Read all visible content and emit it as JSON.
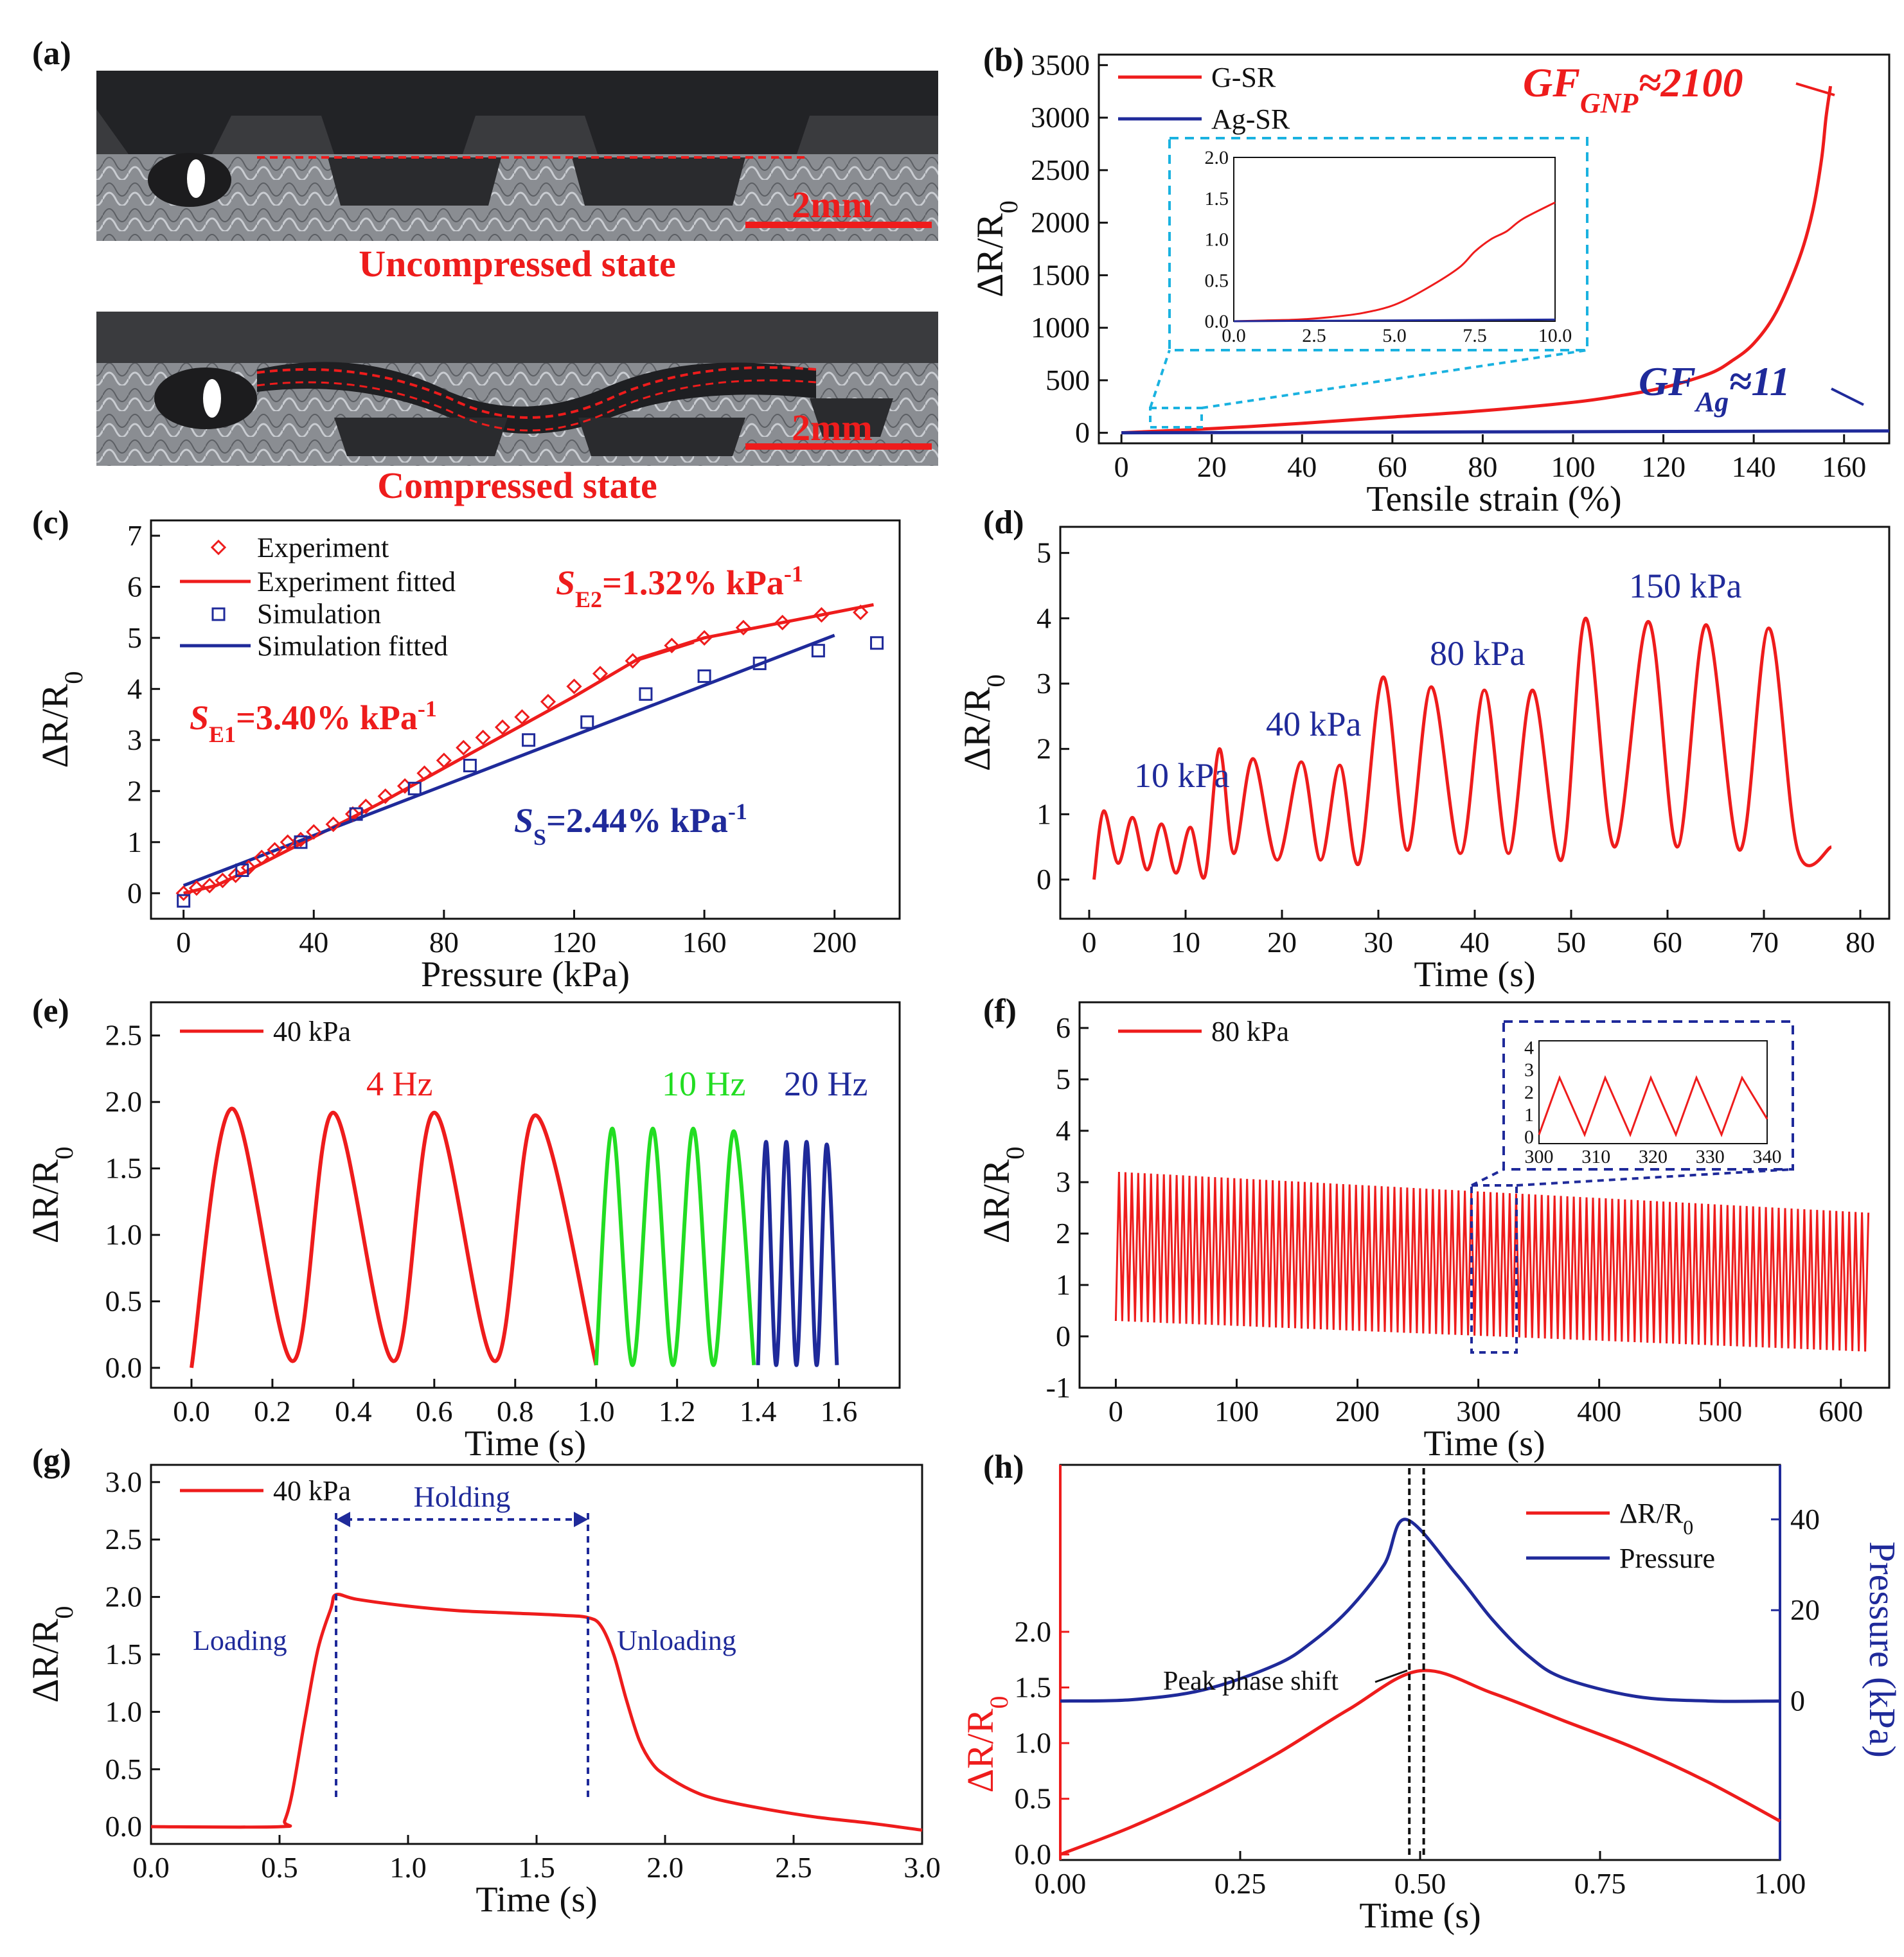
{
  "colors": {
    "red": "#ee1c1c",
    "blue": "#1f2a9a",
    "green": "#22dd22",
    "cyan": "#1ab2e0",
    "black": "#111111"
  },
  "panels": {
    "a": {
      "label": "(a)",
      "top_caption": "Uncompressed state",
      "bottom_caption": "Compressed state",
      "scale_top": "2mm",
      "scale_bottom": "2mm"
    },
    "b": {
      "label": "(b)"
    },
    "c": {
      "label": "(c)"
    },
    "d": {
      "label": "(d)"
    },
    "e": {
      "label": "(e)"
    },
    "f": {
      "label": "(f)"
    },
    "g": {
      "label": "(g)"
    },
    "h": {
      "label": "(h)"
    }
  },
  "chart_data": [
    {
      "panel": "b",
      "type": "line",
      "xlabel": "Tensile strain (%)",
      "ylabel": "ΔR/R0",
      "xlim": [
        -5,
        170
      ],
      "ylim": [
        -100,
        3600
      ],
      "xticks": [
        "0",
        "20",
        "40",
        "60",
        "80",
        "100",
        "120",
        "140",
        "160"
      ],
      "yticks": [
        "0",
        "500",
        "1000",
        "1500",
        "2000",
        "2500",
        "3000",
        "3500"
      ],
      "legend": [
        "G-SR",
        "Ag-SR"
      ],
      "legend_position": "top-left",
      "series": [
        {
          "name": "G-SR",
          "color": "#ee1c1c",
          "x": [
            0,
            20,
            40,
            60,
            80,
            100,
            110,
            120,
            130,
            135,
            140,
            145,
            150,
            153,
            155,
            156,
            157
          ],
          "y": [
            0,
            40,
            90,
            150,
            210,
            290,
            350,
            430,
            560,
            680,
            850,
            1150,
            1650,
            2100,
            2600,
            3000,
            3300
          ]
        },
        {
          "name": "Ag-SR",
          "color": "#1f2a9a",
          "x": [
            0,
            170
          ],
          "y": [
            0,
            18
          ]
        }
      ],
      "annotations": [
        "GF",
        "GNP",
        "≈2100",
        "GF",
        "Ag",
        "≈11"
      ],
      "inset": {
        "xlim": [
          0,
          10
        ],
        "ylim": [
          0,
          2.0
        ],
        "xticks": [
          "0.0",
          "2.5",
          "5.0",
          "7.5",
          "10.0"
        ],
        "yticks": [
          "0.0",
          "0.5",
          "1.0",
          "1.5",
          "2.0"
        ],
        "series": [
          {
            "name": "G-SR",
            "color": "#ee1c1c",
            "x": [
              0,
              1,
              2,
              3,
              4,
              5,
              6,
              7,
              7.5,
              8,
              8.5,
              9,
              10
            ],
            "y": [
              0,
              0.01,
              0.02,
              0.05,
              0.1,
              0.2,
              0.4,
              0.65,
              0.85,
              1.0,
              1.1,
              1.25,
              1.45
            ]
          },
          {
            "name": "Ag-SR",
            "color": "#1f2a9a",
            "x": [
              0,
              10
            ],
            "y": [
              0,
              0.02
            ]
          }
        ]
      }
    },
    {
      "panel": "c",
      "type": "scatter",
      "xlabel": "Pressure (kPa)",
      "ylabel": "ΔR/R0",
      "xlim": [
        -10,
        220
      ],
      "ylim": [
        -0.5,
        7.3
      ],
      "xticks": [
        "0",
        "40",
        "80",
        "120",
        "160",
        "200"
      ],
      "yticks": [
        "0",
        "1",
        "2",
        "3",
        "4",
        "5",
        "6",
        "7"
      ],
      "legend": [
        "Experiment",
        "Experiment fitted",
        "Simulation",
        "Simulation fitted"
      ],
      "legend_position": "top-left",
      "series": [
        {
          "name": "Experiment",
          "color": "#ee1c1c",
          "marker": "diamond",
          "x": [
            0,
            4,
            8,
            12,
            16,
            20,
            24,
            28,
            32,
            36,
            40,
            46,
            52,
            56,
            62,
            68,
            74,
            80,
            86,
            92,
            98,
            104,
            112,
            120,
            128,
            138,
            150,
            160,
            172,
            184,
            196,
            208
          ],
          "y": [
            0,
            0.1,
            0.15,
            0.25,
            0.35,
            0.5,
            0.7,
            0.85,
            1.0,
            1.05,
            1.2,
            1.35,
            1.55,
            1.7,
            1.9,
            2.1,
            2.35,
            2.6,
            2.85,
            3.05,
            3.25,
            3.45,
            3.75,
            4.05,
            4.3,
            4.55,
            4.85,
            5.0,
            5.2,
            5.3,
            5.45,
            5.5
          ]
        },
        {
          "name": "Experiment fitted",
          "color": "#ee1c1c",
          "x": [
            0,
            10,
            20,
            40,
            60,
            80,
            100,
            120,
            140,
            160,
            180,
            200,
            212
          ],
          "y": [
            0,
            0.15,
            0.45,
            1.1,
            1.75,
            2.45,
            3.15,
            3.85,
            4.6,
            5.0,
            5.25,
            5.5,
            5.65
          ]
        },
        {
          "name": "Simulation",
          "color": "#1f2a9a",
          "marker": "square",
          "x": [
            0,
            18,
            36,
            53,
            71,
            88,
            106,
            124,
            142,
            160,
            177,
            195,
            213
          ],
          "y": [
            -0.15,
            0.45,
            1.0,
            1.55,
            2.05,
            2.5,
            3.0,
            3.35,
            3.9,
            4.25,
            4.5,
            4.75,
            4.9
          ]
        },
        {
          "name": "Simulation fitted",
          "color": "#1f2a9a",
          "x": [
            0,
            200
          ],
          "y": [
            0.15,
            5.05
          ]
        }
      ],
      "annotations": [
        "S",
        "E1",
        "=3.40% kPa",
        "-1",
        "S",
        "E2",
        "=1.32% kPa",
        "-1",
        "S",
        "S",
        "=2.44% kPa",
        "-1"
      ]
    },
    {
      "panel": "d",
      "type": "line",
      "xlabel": "Time (s)",
      "ylabel": "ΔR/R0",
      "xlim": [
        -3,
        83
      ],
      "ylim": [
        -0.6,
        5.4
      ],
      "xticks": [
        "0",
        "10",
        "20",
        "30",
        "40",
        "50",
        "60",
        "70",
        "80"
      ],
      "yticks": [
        "0",
        "1",
        "2",
        "3",
        "4",
        "5"
      ],
      "series": [
        {
          "name": "",
          "color": "#ee1c1c",
          "x": [
            0.5,
            1.5,
            3,
            4.5,
            6,
            7.5,
            9,
            10.5,
            12,
            13.5,
            15,
            17,
            19.5,
            22,
            24,
            26,
            28,
            30.5,
            33,
            35.5,
            38.5,
            41,
            43.5,
            46,
            49,
            51.5,
            54.5,
            58,
            61,
            64,
            67.5,
            70.5,
            73.5,
            77
          ],
          "y": [
            0,
            1.05,
            0.25,
            0.95,
            0.15,
            0.85,
            0.1,
            0.8,
            0.05,
            2.0,
            0.4,
            1.85,
            0.3,
            1.8,
            0.3,
            1.75,
            0.25,
            3.1,
            0.45,
            2.95,
            0.4,
            2.9,
            0.4,
            2.9,
            0.3,
            4.0,
            0.5,
            3.95,
            0.5,
            3.9,
            0.45,
            3.85,
            0.45,
            0.5
          ]
        }
      ],
      "annotations": [
        "10 kPa",
        "40 kPa",
        "80 kPa",
        "150 kPa"
      ]
    },
    {
      "panel": "e",
      "type": "line",
      "xlabel": "Time (s)",
      "ylabel": "ΔR/R0",
      "xlim": [
        -0.1,
        1.75
      ],
      "ylim": [
        -0.15,
        2.75
      ],
      "xticks": [
        "0.0",
        "0.2",
        "0.4",
        "0.6",
        "0.8",
        "1.0",
        "1.2",
        "1.4",
        "1.6"
      ],
      "yticks": [
        "0.0",
        "0.5",
        "1.0",
        "1.5",
        "2.0",
        "2.5"
      ],
      "legend": [
        "40 kPa"
      ],
      "legend_position": "top-left",
      "series": [
        {
          "name": "4 Hz",
          "color": "#ee1c1c",
          "x": [
            0,
            0.1,
            0.25,
            0.35,
            0.5,
            0.6,
            0.75,
            0.85,
            1.0
          ],
          "y": [
            0,
            1.95,
            0.05,
            1.92,
            0.05,
            1.92,
            0.05,
            1.9,
            0.02
          ]
        },
        {
          "name": "10 Hz",
          "color": "#22dd22",
          "x": [
            1.0,
            1.04,
            1.09,
            1.14,
            1.19,
            1.24,
            1.29,
            1.34,
            1.39
          ],
          "y": [
            0.02,
            1.8,
            0.02,
            1.8,
            0.02,
            1.8,
            0.02,
            1.78,
            0.02
          ]
        },
        {
          "name": "20 Hz",
          "color": "#1f2a9a",
          "x": [
            1.4,
            1.42,
            1.445,
            1.47,
            1.495,
            1.52,
            1.545,
            1.57,
            1.595
          ],
          "y": [
            0.02,
            1.7,
            0.02,
            1.7,
            0.02,
            1.7,
            0.02,
            1.68,
            0.02
          ]
        }
      ],
      "annotations": [
        "4 Hz",
        "10 Hz",
        "20 Hz"
      ]
    },
    {
      "panel": "f",
      "type": "line",
      "xlabel": "Time (s)",
      "ylabel": "ΔR/R0",
      "xlim": [
        -30,
        640
      ],
      "ylim": [
        -1,
        6.5
      ],
      "xticks": [
        "0",
        "100",
        "200",
        "300",
        "400",
        "500",
        "600"
      ],
      "yticks": [
        "-1",
        "0",
        "1",
        "2",
        "3",
        "4",
        "5",
        "6"
      ],
      "legend": [
        "80 kPa"
      ],
      "legend_position": "top-left",
      "series": [
        {
          "name": "80 kPa",
          "color": "#ee1c1c",
          "x_start": 0,
          "x_end": 625,
          "period": 5.3,
          "peak_start": 3.2,
          "peak_end": 2.4,
          "valley_start": 0.3,
          "valley_end": -0.3
        }
      ],
      "inset": {
        "xlim": [
          300,
          340
        ],
        "ylim": [
          -0.3,
          4.3
        ],
        "xticks": [
          "300",
          "310",
          "320",
          "330",
          "340"
        ],
        "yticks": [
          "0",
          "1",
          "2",
          "3",
          "4"
        ],
        "series": [
          {
            "name": "",
            "color": "#ee1c1c",
            "x_start": 300,
            "x_end": 340,
            "period": 8,
            "peak": 2.65,
            "valley": 0.1
          }
        ]
      }
    },
    {
      "panel": "g",
      "type": "line",
      "xlabel": "Time (s)",
      "ylabel": "ΔR/R0",
      "xlim": [
        0,
        3.0
      ],
      "ylim": [
        -0.15,
        3.15
      ],
      "xticks": [
        "0.0",
        "0.5",
        "1.0",
        "1.5",
        "2.0",
        "2.5",
        "3.0"
      ],
      "yticks": [
        "0.0",
        "0.5",
        "1.0",
        "1.5",
        "2.0",
        "2.5",
        "3.0"
      ],
      "legend": [
        "40 kPa"
      ],
      "legend_position": "top-left",
      "series": [
        {
          "name": "40 kPa",
          "color": "#ee1c1c",
          "x": [
            0,
            0.5,
            0.52,
            0.55,
            0.6,
            0.65,
            0.7,
            0.72,
            0.8,
            1.0,
            1.2,
            1.4,
            1.6,
            1.7,
            1.75,
            1.8,
            1.85,
            1.9,
            1.95,
            2.0,
            2.1,
            2.2,
            2.4,
            2.6,
            2.8,
            3.0
          ],
          "y": [
            0,
            0,
            0.05,
            0.3,
            0.95,
            1.55,
            1.9,
            2.02,
            1.98,
            1.92,
            1.88,
            1.86,
            1.84,
            1.82,
            1.75,
            1.5,
            1.1,
            0.75,
            0.55,
            0.45,
            0.32,
            0.24,
            0.15,
            0.08,
            0.03,
            -0.03
          ]
        }
      ],
      "annotations": [
        "Holding",
        "Loading",
        "Unloading"
      ]
    },
    {
      "panel": "h",
      "type": "line",
      "xlabel": "Time (s)",
      "ylabel": "ΔR/R0",
      "ylabel_right": "Pressure (kPa)",
      "xlim": [
        0,
        1.0
      ],
      "xticks": [
        "0.00",
        "0.25",
        "0.50",
        "0.75",
        "1.00"
      ],
      "yticks": [
        "0.0",
        "0.5",
        "1.0",
        "1.5",
        "2.0"
      ],
      "yticks_right": [
        "0",
        "20",
        "40"
      ],
      "legend": [
        "ΔR/R0",
        "Pressure"
      ],
      "legend_position": "top-right",
      "series": [
        {
          "name": "ΔR/R0",
          "color": "#ee1c1c",
          "axis": "left",
          "x": [
            0,
            0.1,
            0.2,
            0.3,
            0.4,
            0.5,
            0.6,
            0.7,
            0.8,
            0.9,
            1.0
          ],
          "y": [
            0,
            0.25,
            0.55,
            0.9,
            1.3,
            1.65,
            1.45,
            1.2,
            0.95,
            0.65,
            0.3
          ]
        },
        {
          "name": "Pressure",
          "color": "#1f2a9a",
          "axis": "right",
          "x": [
            0,
            0.1,
            0.2,
            0.3,
            0.35,
            0.4,
            0.45,
            0.48,
            0.55,
            0.6,
            0.65,
            0.7,
            0.8,
            0.9,
            1.0
          ],
          "y": [
            0,
            0.3,
            2.5,
            8,
            13,
            20,
            30,
            40,
            28,
            18,
            10,
            5,
            1,
            0,
            0
          ]
        }
      ],
      "annotations": [
        "Peak phase shift"
      ]
    }
  ]
}
